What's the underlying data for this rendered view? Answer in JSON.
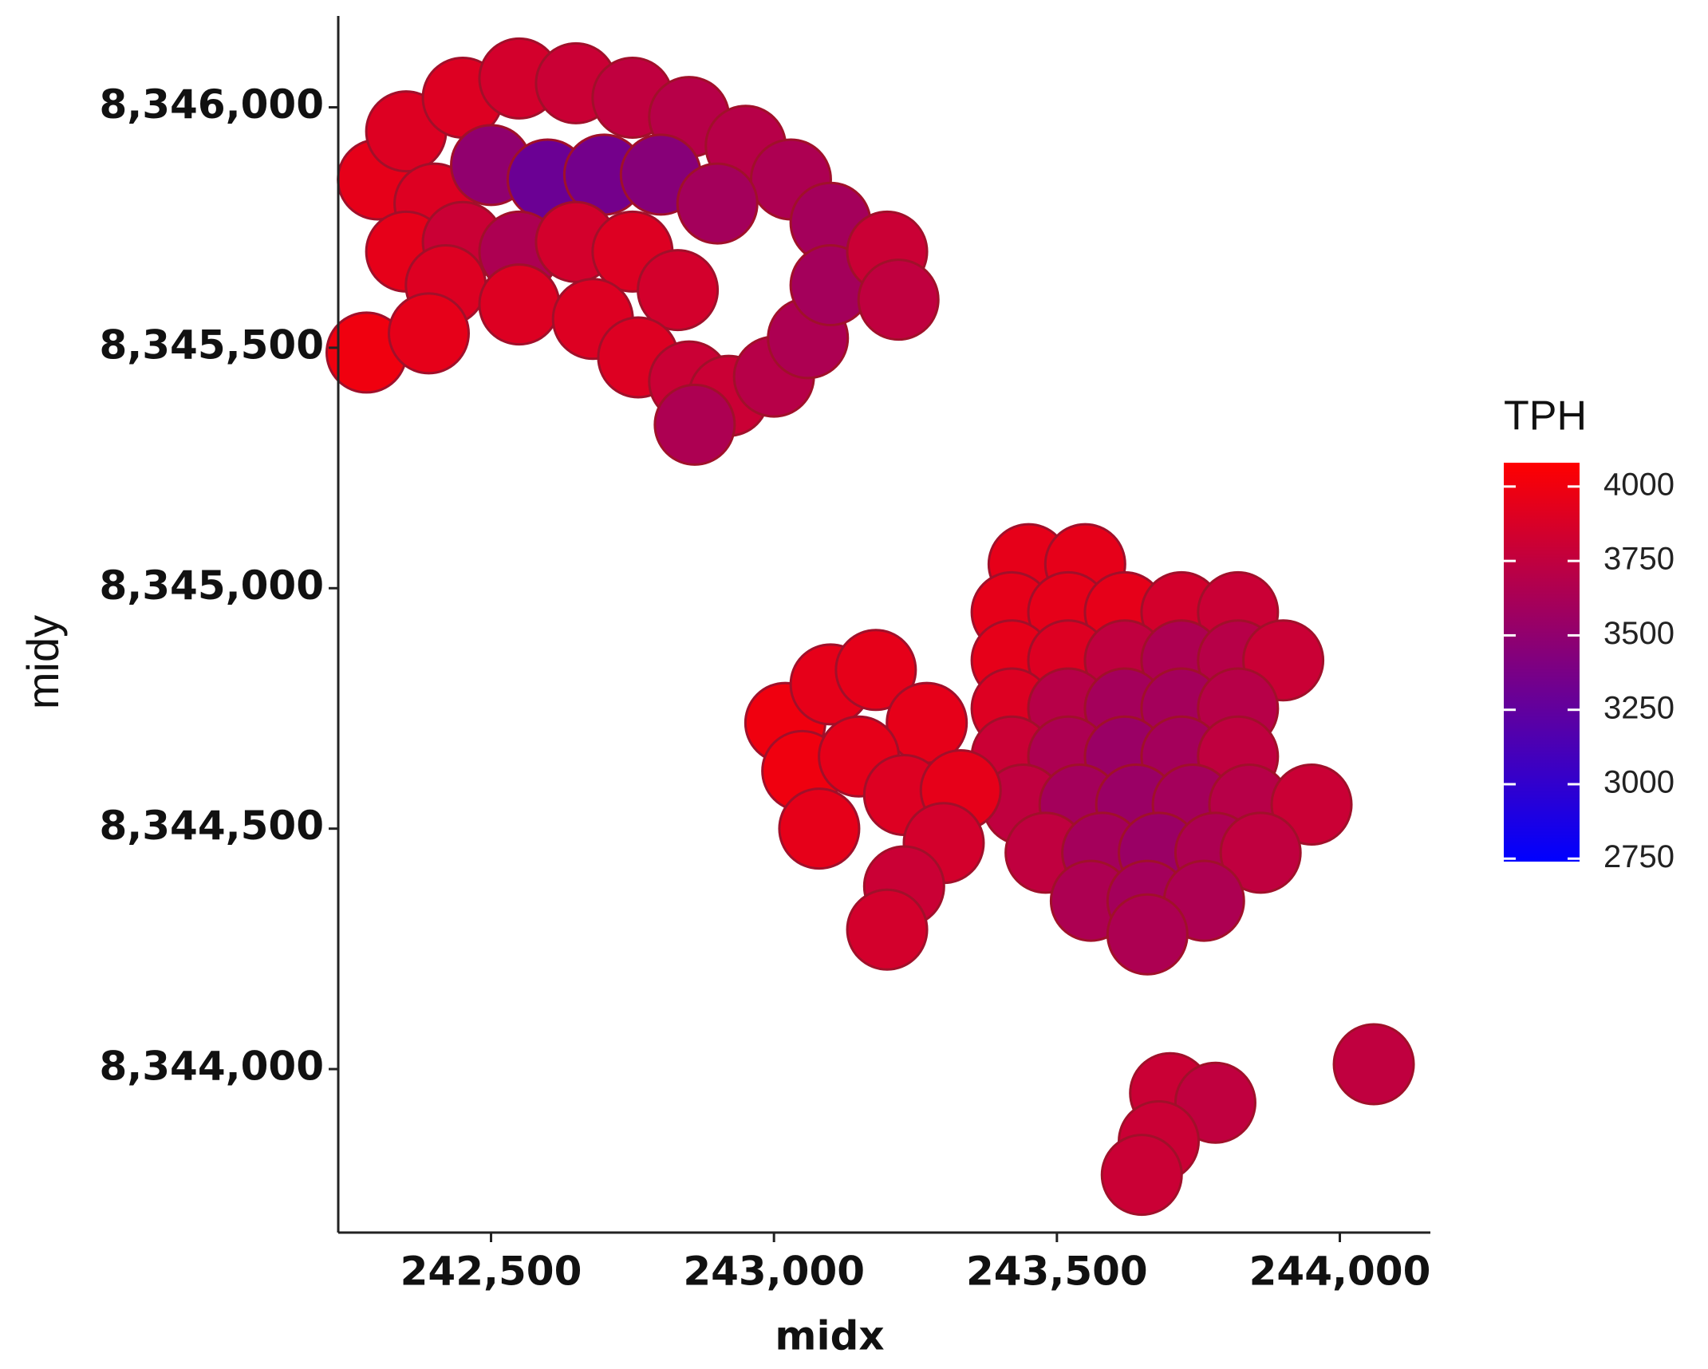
{
  "chart_data": {
    "type": "scatter",
    "xlabel": "midx",
    "ylabel": "midy",
    "xlim": [
      242230,
      244160
    ],
    "ylim": [
      8343660,
      8346190
    ],
    "xticks": [
      {
        "value": 242500,
        "label": "242,500"
      },
      {
        "value": 243000,
        "label": "243,000"
      },
      {
        "value": 243500,
        "label": "243,500"
      },
      {
        "value": 244000,
        "label": "244,000"
      }
    ],
    "yticks": [
      {
        "value": 8344000,
        "label": "8,344,000"
      },
      {
        "value": 8344500,
        "label": "8,344,500"
      },
      {
        "value": 8345000,
        "label": "8,345,000"
      },
      {
        "value": 8345500,
        "label": "8,345,500"
      },
      {
        "value": 8346000,
        "label": "8,346,000"
      }
    ],
    "colorbar": {
      "title": "TPH",
      "clim": [
        2740,
        4080
      ],
      "ticks": [
        2750,
        3000,
        3250,
        3500,
        3750,
        4000
      ],
      "colors": [
        "#0000ff",
        "#ff0000"
      ]
    },
    "x": [
      242300,
      242350,
      242450,
      242550,
      242650,
      242750,
      242850,
      242950,
      243030,
      243100,
      242400,
      242500,
      242600,
      242700,
      242800,
      242900,
      242350,
      242450,
      242550,
      242650,
      242750,
      242830,
      242420,
      242550,
      242680,
      242760,
      242850,
      242920,
      243000,
      243060,
      243100,
      243200,
      243220,
      242860,
      242280,
      242390,
      243450,
      243550,
      243420,
      243520,
      243620,
      243720,
      243820,
      243420,
      243520,
      243620,
      243720,
      243820,
      243900,
      243420,
      243520,
      243620,
      243720,
      243820,
      243420,
      243520,
      243620,
      243720,
      243820,
      243440,
      243540,
      243640,
      243740,
      243840,
      243950,
      243480,
      243580,
      243680,
      243780,
      243860,
      243560,
      243660,
      243760,
      243660,
      243020,
      243100,
      243180,
      243270,
      243050,
      243150,
      243230,
      243330,
      243080,
      243300,
      243230,
      243200,
      243700,
      243780,
      243680,
      243650,
      244060
    ],
    "y": [
      8345850,
      8345950,
      8346020,
      8346060,
      8346050,
      8346020,
      8345980,
      8345920,
      8345850,
      8345760,
      8345800,
      8345880,
      8345850,
      8345860,
      8345860,
      8345800,
      8345700,
      8345720,
      8345700,
      8345720,
      8345700,
      8345620,
      8345630,
      8345590,
      8345560,
      8345480,
      8345430,
      8345400,
      8345440,
      8345520,
      8345630,
      8345700,
      8345600,
      8345340,
      8345490,
      8345530,
      8345050,
      8345050,
      8344950,
      8344950,
      8344950,
      8344950,
      8344950,
      8344850,
      8344850,
      8344850,
      8344850,
      8344850,
      8344850,
      8344750,
      8344750,
      8344750,
      8344750,
      8344750,
      8344650,
      8344650,
      8344650,
      8344650,
      8344650,
      8344550,
      8344550,
      8344550,
      8344550,
      8344550,
      8344550,
      8344450,
      8344450,
      8344450,
      8344450,
      8344450,
      8344350,
      8344350,
      8344350,
      8344280,
      8344720,
      8344800,
      8344830,
      8344720,
      8344620,
      8344650,
      8344570,
      8344580,
      8344500,
      8344470,
      8344380,
      8344290,
      8343950,
      8343930,
      8343850,
      8343780,
      8344010
    ],
    "color_values": [
      3950,
      3900,
      3900,
      3850,
      3800,
      3750,
      3700,
      3700,
      3650,
      3600,
      3900,
      3500,
      3300,
      3350,
      3450,
      3600,
      3950,
      3800,
      3650,
      3850,
      3900,
      3850,
      3900,
      3900,
      3900,
      3900,
      3800,
      3800,
      3700,
      3650,
      3600,
      3800,
      3750,
      3650,
      4000,
      3950,
      3950,
      3950,
      3950,
      3950,
      3950,
      3850,
      3800,
      3950,
      3900,
      3750,
      3650,
      3700,
      3800,
      3900,
      3700,
      3600,
      3600,
      3700,
      3800,
      3650,
      3550,
      3600,
      3750,
      3750,
      3600,
      3550,
      3600,
      3700,
      3800,
      3750,
      3600,
      3550,
      3650,
      3750,
      3650,
      3600,
      3650,
      3650,
      4000,
      3950,
      3950,
      3950,
      4000,
      3950,
      3900,
      3950,
      3950,
      3850,
      3800,
      3850,
      3800,
      3750,
      3800,
      3800,
      3750
    ]
  }
}
